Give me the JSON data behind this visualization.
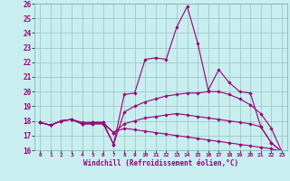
{
  "xlabel": "Windchill (Refroidissement éolien,°C)",
  "bg_color": "#c8eef0",
  "line_color": "#990077",
  "ylim": [
    16,
    26
  ],
  "xlim": [
    -0.5,
    23.5
  ],
  "yticks": [
    16,
    17,
    18,
    19,
    20,
    21,
    22,
    23,
    24,
    25,
    26
  ],
  "xticks": [
    0,
    1,
    2,
    3,
    4,
    5,
    6,
    7,
    8,
    9,
    10,
    11,
    12,
    13,
    14,
    15,
    16,
    17,
    18,
    19,
    20,
    21,
    22,
    23
  ],
  "lines": [
    {
      "x": [
        0,
        1,
        2,
        3,
        4,
        5,
        6,
        7,
        8,
        9,
        10,
        11,
        12,
        13,
        14,
        15,
        16,
        17,
        18,
        19,
        20,
        21,
        22,
        23
      ],
      "y": [
        17.9,
        17.7,
        18.0,
        18.1,
        17.9,
        17.9,
        17.9,
        16.4,
        19.8,
        19.9,
        22.2,
        22.3,
        22.2,
        24.4,
        25.8,
        23.3,
        20.1,
        21.5,
        20.6,
        20.0,
        19.9,
        17.6,
        16.5,
        15.9
      ]
    },
    {
      "x": [
        0,
        1,
        2,
        3,
        4,
        5,
        6,
        7,
        8,
        9,
        10,
        11,
        12,
        13,
        14,
        15,
        16,
        17,
        18,
        19,
        20,
        21,
        22,
        23
      ],
      "y": [
        17.9,
        17.7,
        18.0,
        18.1,
        17.8,
        17.8,
        17.8,
        16.4,
        18.6,
        19.0,
        19.3,
        19.5,
        19.7,
        19.8,
        19.9,
        19.9,
        20.0,
        20.0,
        19.8,
        19.5,
        19.1,
        18.5,
        17.5,
        15.9
      ]
    },
    {
      "x": [
        0,
        1,
        2,
        3,
        4,
        5,
        6,
        7,
        8,
        9,
        10,
        11,
        12,
        13,
        14,
        15,
        16,
        17,
        18,
        19,
        20,
        21,
        22,
        23
      ],
      "y": [
        17.9,
        17.7,
        18.0,
        18.1,
        17.8,
        17.9,
        17.9,
        17.2,
        17.8,
        18.0,
        18.2,
        18.3,
        18.4,
        18.5,
        18.4,
        18.3,
        18.2,
        18.1,
        18.0,
        17.9,
        17.8,
        17.6,
        16.5,
        15.9
      ]
    },
    {
      "x": [
        0,
        1,
        2,
        3,
        4,
        5,
        6,
        7,
        8,
        9,
        10,
        11,
        12,
        13,
        14,
        15,
        16,
        17,
        18,
        19,
        20,
        21,
        22,
        23
      ],
      "y": [
        17.9,
        17.7,
        18.0,
        18.1,
        17.8,
        17.8,
        17.8,
        17.2,
        17.5,
        17.4,
        17.3,
        17.2,
        17.1,
        17.0,
        16.9,
        16.8,
        16.7,
        16.6,
        16.5,
        16.4,
        16.3,
        16.2,
        16.1,
        15.9
      ]
    }
  ]
}
